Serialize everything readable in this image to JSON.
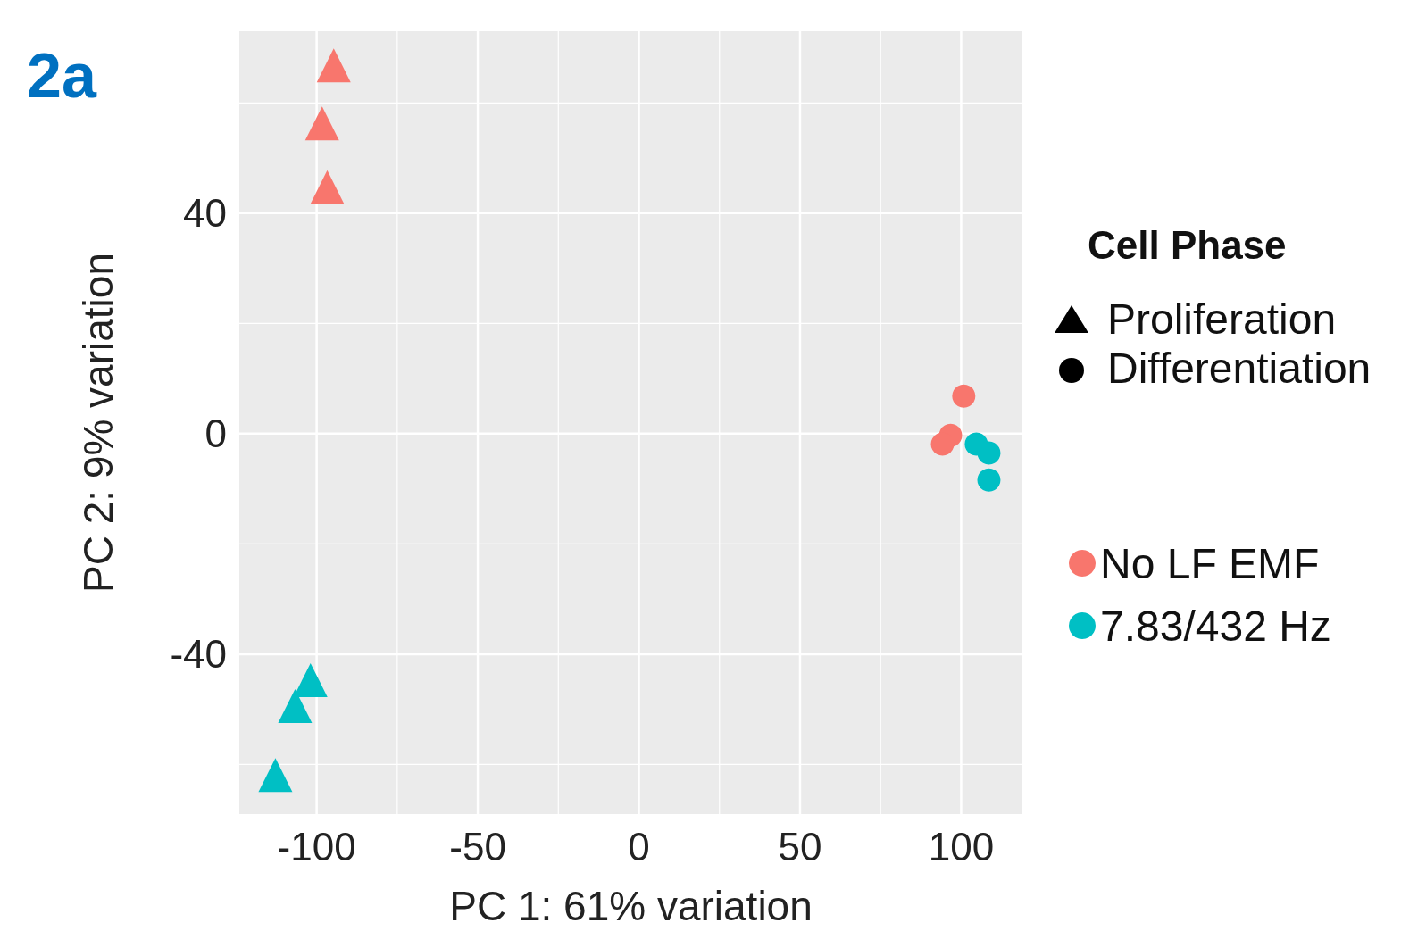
{
  "chart_data": {
    "type": "scatter",
    "title": "2a",
    "xlabel": "PC 1: 61% variation",
    "ylabel": "PC 2: 9% variation",
    "legend_title": "Cell Phase",
    "annotations": [
      "Proliferation",
      "Differentiation"
    ],
    "xlim": [
      -124,
      119
    ],
    "ylim": [
      -69,
      73
    ],
    "xticks": [
      -100,
      -50,
      0,
      50,
      100
    ],
    "yticks": [
      -40,
      0,
      40
    ],
    "grid": true,
    "legend": "right",
    "series": [
      {
        "color": "#f8766d",
        "marker": "triangle",
        "x": [
          -94.7,
          -98.3,
          -96.7
        ],
        "values": [
          66.8,
          56.3,
          44.7
        ]
      },
      {
        "color": "#00bfc4",
        "marker": "triangle",
        "x": [
          -101.9,
          -106.7,
          -112.8
        ],
        "values": [
          -44.7,
          -49.4,
          -61.9
        ]
      },
      {
        "name": "No LF EMF",
        "color": "#f8766d",
        "marker": "circle",
        "x": [
          100.8,
          96.7,
          94.2
        ],
        "values": [
          6.8,
          -0.3,
          -1.9
        ]
      },
      {
        "name": "7.83/432 Hz",
        "color": "#00bfc4",
        "marker": "circle",
        "x": [
          104.7,
          108.6,
          108.6
        ],
        "values": [
          -1.9,
          -3.5,
          -8.4
        ]
      }
    ]
  }
}
